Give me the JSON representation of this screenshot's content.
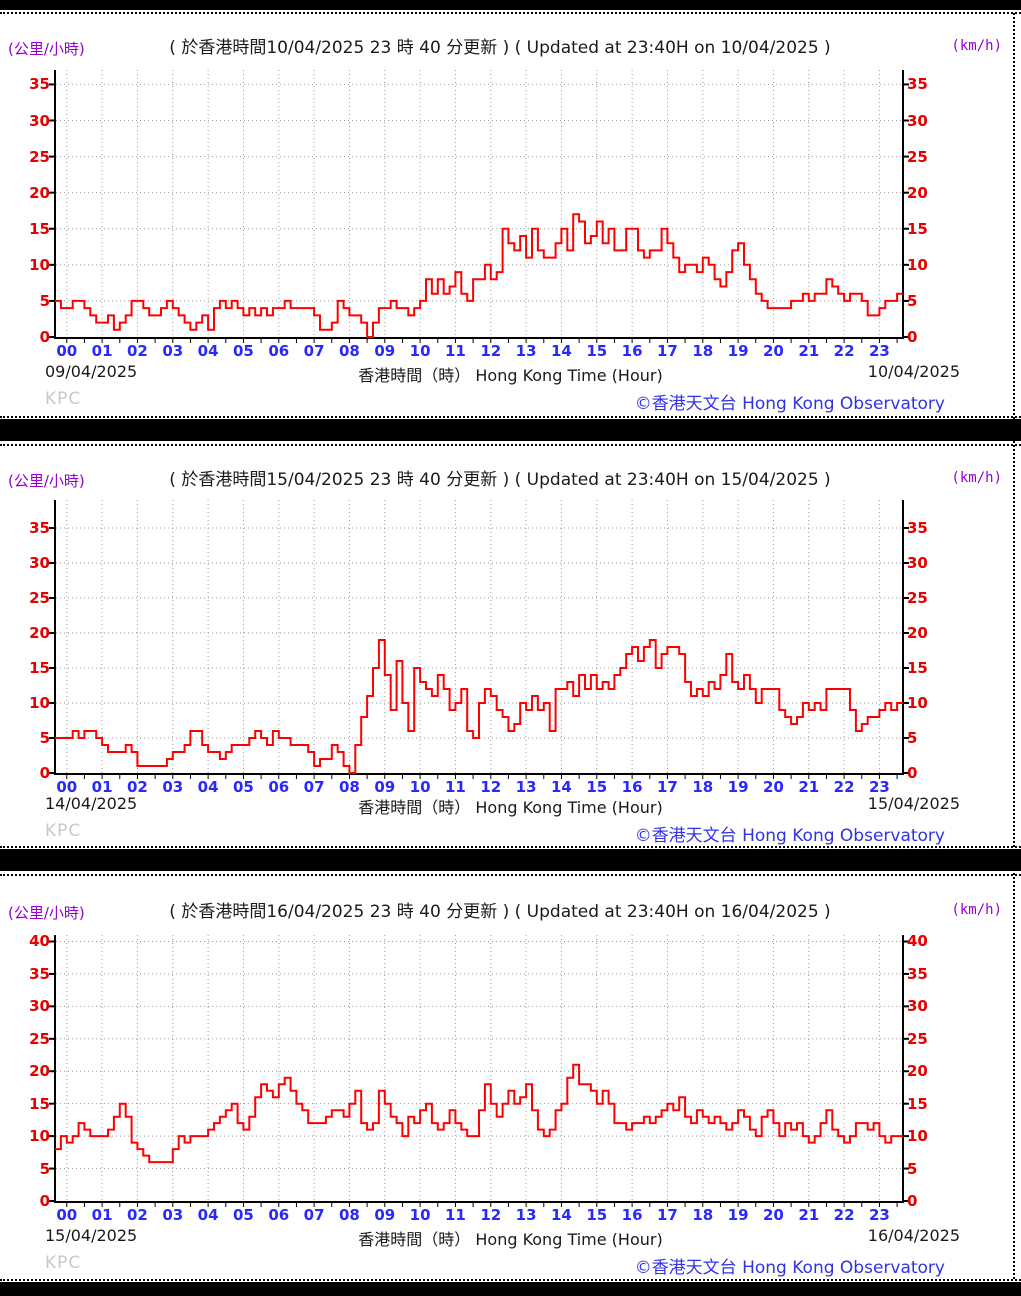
{
  "labels": {
    "unit_left": "(公里/小時)",
    "unit_right": "(km/h)",
    "xlabel": "香港時間（時） Hong Kong Time (Hour)",
    "watermark": "KPC",
    "copyright": "©香港天文台 Hong Kong Observatory"
  },
  "colors": {
    "series_line": "#ff0000",
    "y_axis_labels": "#e60000",
    "x_axis_labels": "#2828ff",
    "unit_labels": "#9400d3",
    "copyright": "#3232e6",
    "watermark": "#c9c9c9",
    "grid": "#9a9a9a",
    "frame": "#000000"
  },
  "chart_data": [
    {
      "type": "line",
      "title": "( 於香港時間10/04/2025 23 時 40 分更新 ) ( Updated at 23:40H on 10/04/2025 )",
      "date_left": "09/04/2025",
      "date_right": "10/04/2025",
      "xlabel": "香港時間（時） Hong Kong Time (Hour)",
      "ylabel_left": "(公里/小時)",
      "ylabel_right": "(km/h)",
      "x_ticks": [
        "00",
        "01",
        "02",
        "03",
        "04",
        "05",
        "06",
        "07",
        "08",
        "09",
        "10",
        "11",
        "12",
        "13",
        "14",
        "15",
        "16",
        "17",
        "18",
        "19",
        "20",
        "21",
        "22",
        "23"
      ],
      "y_ticks": [
        0,
        5,
        10,
        15,
        20,
        25,
        30,
        35
      ],
      "ylim": [
        0,
        37
      ],
      "grid": true,
      "series": {
        "name": "wind-speed-km-h",
        "color": "#ff0000",
        "sample_interval_minutes": 10,
        "values": [
          5,
          4,
          4,
          5,
          5,
          4,
          3,
          2,
          2,
          3,
          1,
          2,
          3,
          5,
          5,
          4,
          3,
          3,
          4,
          5,
          4,
          3,
          2,
          1,
          2,
          3,
          1,
          4,
          5,
          4,
          5,
          4,
          3,
          4,
          3,
          4,
          3,
          4,
          4,
          5,
          4,
          4,
          4,
          4,
          3,
          1,
          1,
          2,
          5,
          4,
          3,
          3,
          2,
          0,
          2,
          4,
          4,
          5,
          4,
          4,
          3,
          4,
          5,
          8,
          6,
          8,
          6,
          7,
          9,
          6,
          5,
          8,
          8,
          10,
          8,
          9,
          15,
          13,
          12,
          14,
          11,
          15,
          12,
          11,
          11,
          13,
          15,
          12,
          17,
          16,
          13,
          14,
          16,
          13,
          15,
          12,
          12,
          15,
          15,
          12,
          11,
          12,
          12,
          15,
          13,
          11,
          9,
          10,
          10,
          9,
          11,
          10,
          8,
          7,
          9,
          12,
          13,
          10,
          8,
          6,
          5,
          4,
          4,
          4,
          4,
          5,
          5,
          6,
          5,
          6,
          6,
          8,
          7,
          6,
          5,
          6,
          6,
          5,
          3,
          3,
          4,
          5,
          5,
          6
        ]
      }
    },
    {
      "type": "line",
      "title": "( 於香港時間15/04/2025 23 時 40 分更新 ) ( Updated at 23:40H on 15/04/2025 )",
      "date_left": "14/04/2025",
      "date_right": "15/04/2025",
      "xlabel": "香港時間（時） Hong Kong Time (Hour)",
      "ylabel_left": "(公里/小時)",
      "ylabel_right": "(km/h)",
      "x_ticks": [
        "00",
        "01",
        "02",
        "03",
        "04",
        "05",
        "06",
        "07",
        "08",
        "09",
        "10",
        "11",
        "12",
        "13",
        "14",
        "15",
        "16",
        "17",
        "18",
        "19",
        "20",
        "21",
        "22",
        "23"
      ],
      "y_ticks": [
        0,
        5,
        10,
        15,
        20,
        25,
        30,
        35
      ],
      "ylim": [
        0,
        39
      ],
      "grid": true,
      "series": {
        "name": "wind-speed-km-h",
        "color": "#ff0000",
        "sample_interval_minutes": 10,
        "values": [
          5,
          5,
          5,
          6,
          5,
          6,
          6,
          5,
          4,
          3,
          3,
          3,
          4,
          3,
          1,
          1,
          1,
          1,
          1,
          2,
          3,
          3,
          4,
          6,
          6,
          4,
          3,
          3,
          2,
          3,
          4,
          4,
          4,
          5,
          6,
          5,
          4,
          6,
          5,
          5,
          4,
          4,
          4,
          3,
          1,
          2,
          2,
          4,
          3,
          1,
          0,
          4,
          8,
          11,
          15,
          19,
          14,
          9,
          16,
          10,
          6,
          15,
          13,
          12,
          11,
          14,
          12,
          9,
          10,
          12,
          6,
          5,
          10,
          12,
          11,
          9,
          8,
          6,
          7,
          10,
          9,
          11,
          9,
          10,
          6,
          12,
          12,
          13,
          11,
          14,
          12,
          14,
          12,
          13,
          12,
          14,
          15,
          17,
          18,
          16,
          18,
          19,
          15,
          17,
          18,
          18,
          17,
          13,
          11,
          12,
          11,
          13,
          12,
          14,
          17,
          13,
          12,
          14,
          12,
          10,
          12,
          12,
          12,
          9,
          8,
          7,
          8,
          10,
          9,
          10,
          9,
          12,
          12,
          12,
          12,
          9,
          6,
          7,
          8,
          8,
          9,
          10,
          9,
          10
        ]
      }
    },
    {
      "type": "line",
      "title": "( 於香港時間16/04/2025 23 時 40 分更新 ) ( Updated at 23:40H on 16/04/2025 )",
      "date_left": "15/04/2025",
      "date_right": "16/04/2025",
      "xlabel": "香港時間（時） Hong Kong Time (Hour)",
      "ylabel_left": "(公里/小時)",
      "ylabel_right": "(km/h)",
      "x_ticks": [
        "00",
        "01",
        "02",
        "03",
        "04",
        "05",
        "06",
        "07",
        "08",
        "09",
        "10",
        "11",
        "12",
        "13",
        "14",
        "15",
        "16",
        "17",
        "18",
        "19",
        "20",
        "21",
        "22",
        "23"
      ],
      "y_ticks": [
        0,
        5,
        10,
        15,
        20,
        25,
        30,
        35,
        40
      ],
      "ylim": [
        0,
        41
      ],
      "grid": true,
      "series": {
        "name": "wind-speed-km-h",
        "color": "#ff0000",
        "sample_interval_minutes": 10,
        "values": [
          8,
          10,
          9,
          10,
          12,
          11,
          10,
          10,
          10,
          11,
          13,
          15,
          13,
          9,
          8,
          7,
          6,
          6,
          6,
          6,
          8,
          10,
          9,
          10,
          10,
          10,
          11,
          12,
          13,
          14,
          15,
          12,
          11,
          13,
          16,
          18,
          17,
          16,
          18,
          19,
          17,
          15,
          14,
          12,
          12,
          12,
          13,
          14,
          14,
          13,
          15,
          17,
          12,
          11,
          12,
          17,
          15,
          13,
          12,
          10,
          13,
          12,
          14,
          15,
          12,
          11,
          12,
          14,
          12,
          11,
          10,
          10,
          14,
          18,
          15,
          13,
          15,
          17,
          15,
          16,
          18,
          14,
          11,
          10,
          11,
          14,
          15,
          19,
          21,
          18,
          18,
          17,
          15,
          17,
          15,
          12,
          12,
          11,
          12,
          12,
          13,
          12,
          13,
          14,
          15,
          14,
          16,
          13,
          12,
          14,
          13,
          12,
          13,
          12,
          11,
          12,
          14,
          13,
          11,
          10,
          13,
          14,
          12,
          10,
          12,
          11,
          12,
          10,
          9,
          10,
          12,
          14,
          11,
          10,
          9,
          10,
          12,
          12,
          11,
          12,
          10,
          9,
          10,
          10
        ]
      }
    }
  ]
}
